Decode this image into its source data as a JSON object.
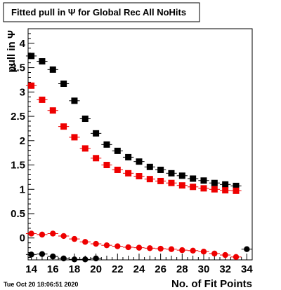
{
  "footer": {
    "timestamp": "Tue Oct 20 18:06:51 2020"
  },
  "colors": {
    "black": "#000000",
    "red": "#ee0000",
    "frame": "#000000"
  },
  "chart_data": {
    "type": "scatter",
    "title": "Fitted pull in Ψ for Global Rec All NoHits",
    "xlabel": "No. of Fit Points",
    "ylabel": "pull in Ψ",
    "xlim": [
      13.7,
      34.5
    ],
    "ylim": [
      -0.45,
      4.3
    ],
    "xticks": [
      14,
      16,
      18,
      20,
      22,
      24,
      26,
      28,
      30,
      32,
      34
    ],
    "yticks": [
      0,
      0.5,
      1,
      1.5,
      2,
      2.5,
      3,
      3.5,
      4
    ],
    "ytick_labels": [
      "0",
      "0.5",
      "1",
      "1.5",
      "2",
      "2.5",
      "3",
      "3.5",
      "4"
    ],
    "grid": false,
    "series": [
      {
        "key": "black-square",
        "marker": "square",
        "color": "#000000",
        "x": [
          14,
          15,
          16,
          17,
          18,
          19,
          20,
          21,
          22,
          23,
          24,
          25,
          26,
          27,
          28,
          29,
          30,
          31,
          32,
          33
        ],
        "y": [
          3.74,
          3.63,
          3.46,
          3.17,
          2.82,
          2.45,
          2.15,
          1.92,
          1.79,
          1.66,
          1.57,
          1.46,
          1.4,
          1.33,
          1.28,
          1.22,
          1.18,
          1.13,
          1.1,
          1.07
        ]
      },
      {
        "key": "red-square",
        "marker": "square",
        "color": "#ee0000",
        "x": [
          14,
          15,
          16,
          17,
          18,
          19,
          20,
          21,
          22,
          23,
          24,
          25,
          26,
          27,
          28,
          29,
          30,
          31,
          32,
          33
        ],
        "y": [
          3.13,
          2.84,
          2.62,
          2.29,
          2.07,
          1.84,
          1.64,
          1.5,
          1.4,
          1.33,
          1.27,
          1.21,
          1.17,
          1.13,
          1.08,
          1.05,
          1.02,
          1.0,
          0.98,
          0.97
        ]
      },
      {
        "key": "red-circle",
        "marker": "circle",
        "color": "#ee0000",
        "x": [
          14,
          15,
          16,
          17,
          18,
          19,
          20,
          21,
          22,
          23,
          24,
          25,
          26,
          27,
          28,
          29,
          30,
          31,
          32,
          33
        ],
        "y": [
          0.09,
          0.07,
          0.09,
          0.04,
          -0.02,
          -0.08,
          -0.12,
          -0.15,
          -0.17,
          -0.19,
          -0.2,
          -0.21,
          -0.22,
          -0.23,
          -0.25,
          -0.26,
          -0.28,
          -0.32,
          -0.35,
          -0.39
        ]
      },
      {
        "key": "black-circle",
        "marker": "circle",
        "color": "#000000",
        "x": [
          14,
          15,
          16,
          17,
          18,
          19,
          20,
          34
        ],
        "y": [
          -0.34,
          -0.33,
          -0.38,
          -0.42,
          -0.44,
          -0.44,
          -0.42,
          -0.23
        ]
      }
    ]
  }
}
